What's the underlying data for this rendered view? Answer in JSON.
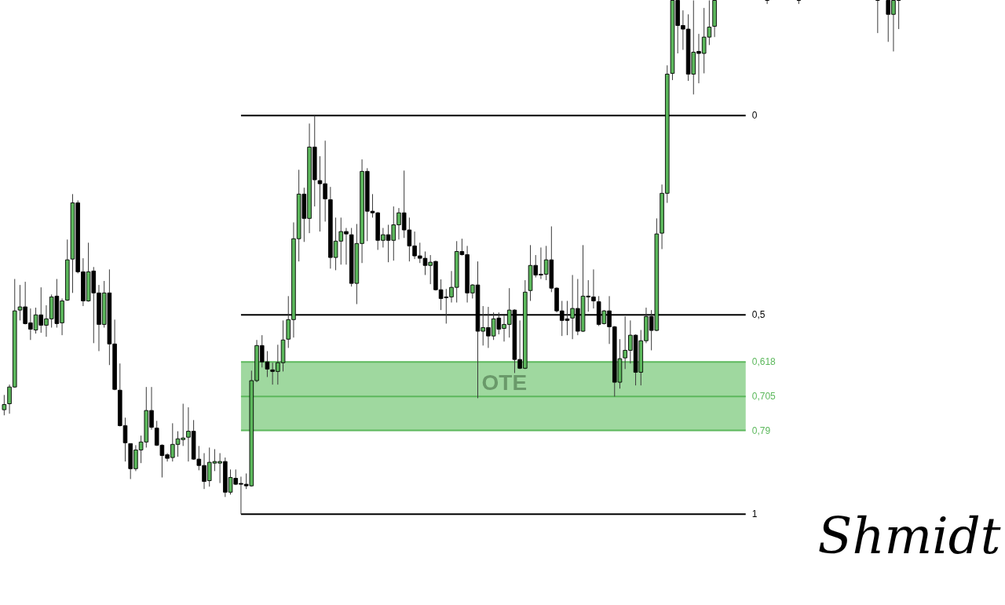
{
  "chart_data": {
    "type": "candlestick",
    "categories": [
      null,
      null,
      null,
      null,
      null,
      null,
      null,
      null,
      null,
      null,
      null,
      null,
      null,
      null,
      null,
      null,
      null,
      null,
      null,
      null,
      null,
      null,
      null,
      null,
      null,
      null,
      null,
      null,
      null,
      null,
      null,
      null,
      null,
      null,
      null,
      null,
      null,
      null,
      null,
      null,
      null,
      null,
      null,
      null,
      null,
      null,
      null,
      null,
      null,
      null,
      null,
      null,
      null,
      null,
      null,
      null,
      null,
      null,
      null,
      null,
      null,
      null,
      null,
      null,
      null,
      null,
      null,
      null,
      null,
      null,
      null,
      null,
      null,
      null,
      null,
      null,
      null,
      null,
      null,
      null,
      null,
      null,
      null,
      null,
      null,
      null,
      null,
      null,
      null,
      null,
      null,
      null,
      null,
      null,
      null,
      null,
      null,
      null,
      null,
      null,
      null,
      null,
      null,
      null,
      null,
      null,
      null,
      null,
      null,
      null,
      null,
      null,
      null,
      null,
      null,
      null,
      null,
      null,
      null,
      null,
      null,
      null,
      null,
      null,
      null,
      null,
      null,
      null,
      null,
      null,
      null,
      null,
      null,
      null,
      null,
      null,
      null,
      null,
      null,
      null,
      null,
      null,
      null,
      null,
      null,
      null,
      null,
      null,
      null,
      null,
      null,
      null,
      null,
      null,
      null,
      null,
      null,
      null,
      null,
      null,
      null,
      null,
      null,
      null,
      null,
      null,
      null,
      null,
      null,
      null,
      null
    ],
    "ohlc": [
      [
        0.738,
        0.752,
        0.701,
        0.725
      ],
      [
        0.723,
        0.748,
        0.675,
        0.681
      ],
      [
        0.681,
        0.683,
        0.41,
        0.49
      ],
      [
        0.488,
        0.514,
        0.425,
        0.48
      ],
      [
        0.48,
        0.524,
        0.417,
        0.522
      ],
      [
        0.52,
        0.563,
        0.484,
        0.536
      ],
      [
        0.538,
        0.547,
        0.482,
        0.5
      ],
      [
        0.5,
        0.545,
        0.431,
        0.526
      ],
      [
        0.526,
        0.555,
        0.476,
        0.51
      ],
      [
        0.51,
        0.532,
        0.449,
        0.455
      ],
      [
        0.453,
        0.532,
        0.41,
        0.522
      ],
      [
        0.52,
        0.551,
        0.459,
        0.465
      ],
      [
        0.463,
        0.465,
        0.311,
        0.362
      ],
      [
        0.36,
        0.445,
        0.197,
        0.219
      ],
      [
        0.219,
        0.396,
        0.213,
        0.392
      ],
      [
        0.392,
        0.478,
        0.358,
        0.465
      ],
      [
        0.465,
        0.467,
        0.319,
        0.392
      ],
      [
        0.39,
        0.571,
        0.38,
        0.445
      ],
      [
        0.445,
        0.591,
        0.425,
        0.524
      ],
      [
        0.524,
        0.532,
        0.415,
        0.445
      ],
      [
        0.445,
        0.626,
        0.386,
        0.573
      ],
      [
        0.573,
        0.689,
        0.512,
        0.687
      ],
      [
        0.689,
        0.78,
        0.622,
        0.778
      ],
      [
        0.778,
        0.868,
        0.758,
        0.821
      ],
      [
        0.823,
        0.912,
        0.823,
        0.886
      ],
      [
        0.886,
        0.892,
        0.827,
        0.839
      ],
      [
        0.839,
        0.872,
        0.803,
        0.819
      ],
      [
        0.819,
        0.833,
        0.681,
        0.74
      ],
      [
        0.74,
        0.788,
        0.681,
        0.782
      ],
      [
        0.784,
        0.829,
        0.766,
        0.827
      ],
      [
        0.827,
        0.908,
        0.825,
        0.853
      ],
      [
        0.851,
        0.868,
        0.847,
        0.86
      ],
      [
        0.858,
        0.868,
        0.772,
        0.825
      ],
      [
        0.825,
        0.856,
        0.792,
        0.811
      ],
      [
        0.813,
        0.829,
        0.723,
        0.809
      ],
      [
        0.807,
        0.868,
        0.732,
        0.792
      ],
      [
        0.792,
        0.864,
        0.764,
        0.862
      ],
      [
        0.862,
        0.89,
        0.829,
        0.878
      ],
      [
        0.878,
        0.937,
        0.847,
        0.918
      ],
      [
        0.916,
        0.931,
        0.833,
        0.87
      ],
      [
        0.872,
        0.892,
        0.837,
        0.868
      ],
      [
        0.872,
        0.922,
        0.847,
        0.868
      ],
      [
        0.868,
        0.957,
        0.858,
        0.945
      ],
      [
        0.945,
        0.951,
        0.888,
        0.908
      ],
      [
        0.91,
        0.927,
        0.888,
        0.925
      ],
      [
        0.923,
        1,
        0.906,
        0.925
      ],
      [
        0.925,
        0.937,
        0.898,
        0.929
      ],
      [
        0.929,
        0.931,
        0.64,
        0.665
      ],
      [
        0.665,
        0.669,
        0.563,
        0.577
      ],
      [
        0.577,
        0.632,
        0.551,
        0.618
      ],
      [
        0.618,
        0.656,
        0.591,
        0.636
      ],
      [
        0.638,
        0.675,
        0.62,
        0.642
      ],
      [
        0.642,
        0.675,
        0.575,
        0.62
      ],
      [
        0.62,
        0.642,
        0.514,
        0.563
      ],
      [
        0.561,
        0.583,
        0.453,
        0.512
      ],
      [
        0.512,
        0.557,
        0.268,
        0.309
      ],
      [
        0.309,
        0.366,
        0.136,
        0.197
      ],
      [
        0.197,
        0.317,
        0.181,
        0.258
      ],
      [
        0.258,
        0.295,
        0.02,
        0.079
      ],
      [
        0.079,
        0.228,
        0,
        0.161
      ],
      [
        0.163,
        0.291,
        0.102,
        0.171
      ],
      [
        0.171,
        0.266,
        0.063,
        0.209
      ],
      [
        0.211,
        0.384,
        0.179,
        0.356
      ],
      [
        0.356,
        0.388,
        0.256,
        0.315
      ],
      [
        0.315,
        0.374,
        0.256,
        0.291
      ],
      [
        0.291,
        0.374,
        0.282,
        0.297
      ],
      [
        0.299,
        0.429,
        0.282,
        0.421
      ],
      [
        0.421,
        0.473,
        0.272,
        0.321
      ],
      [
        0.321,
        0.37,
        0.11,
        0.14
      ],
      [
        0.14,
        0.315,
        0.132,
        0.24
      ],
      [
        0.24,
        0.256,
        0.197,
        0.244
      ],
      [
        0.244,
        0.337,
        0.242,
        0.313
      ],
      [
        0.313,
        0.331,
        0.282,
        0.299
      ],
      [
        0.299,
        0.368,
        0.274,
        0.313
      ],
      [
        0.313,
        0.364,
        0.228,
        0.274
      ],
      [
        0.274,
        0.311,
        0.232,
        0.244
      ],
      [
        0.244,
        0.307,
        0.138,
        0.287
      ],
      [
        0.287,
        0.366,
        0.256,
        0.327
      ],
      [
        0.327,
        0.36,
        0.291,
        0.352
      ],
      [
        0.352,
        0.37,
        0.319,
        0.358
      ],
      [
        0.358,
        0.4,
        0.341,
        0.376
      ],
      [
        0.376,
        0.423,
        0.35,
        0.368
      ],
      [
        0.366,
        0.439,
        0.364,
        0.437
      ],
      [
        0.437,
        0.488,
        0.411,
        0.459
      ],
      [
        0.455,
        0.522,
        0.435,
        0.457
      ],
      [
        0.455,
        0.469,
        0.39,
        0.431
      ],
      [
        0.431,
        0.469,
        0.315,
        0.341
      ],
      [
        0.341,
        0.351,
        0.309,
        0.349
      ],
      [
        0.349,
        0.469,
        0.327,
        0.445
      ],
      [
        0.445,
        0.459,
        0.423,
        0.425
      ],
      [
        0.425,
        0.709,
        0.366,
        0.541
      ],
      [
        0.541,
        0.577,
        0.478,
        0.532
      ],
      [
        0.532,
        0.583,
        0.48,
        0.553
      ],
      [
        0.553,
        0.563,
        0.494,
        0.51
      ],
      [
        0.508,
        0.549,
        0.494,
        0.536
      ],
      [
        0.534,
        0.567,
        0.502,
        0.524
      ],
      [
        0.524,
        0.557,
        0.433,
        0.488
      ],
      [
        0.488,
        0.646,
        0.486,
        0.612
      ],
      [
        0.612,
        0.636,
        0.514,
        0.634
      ],
      [
        0.634,
        0.636,
        0.413,
        0.443
      ],
      [
        0.439,
        0.465,
        0.325,
        0.376
      ],
      [
        0.376,
        0.406,
        0.35,
        0.4
      ],
      [
        0.398,
        0.41,
        0.331,
        0.4
      ],
      [
        0.398,
        0.413,
        0.327,
        0.362
      ],
      [
        0.362,
        0.443,
        0.278,
        0.433
      ],
      [
        0.433,
        0.494,
        0.431,
        0.49
      ],
      [
        0.49,
        0.553,
        0.465,
        0.514
      ],
      [
        0.51,
        0.551,
        0.465,
        0.514
      ],
      [
        0.508,
        0.561,
        0.4,
        0.484
      ],
      [
        0.484,
        0.551,
        0.41,
        0.541
      ],
      [
        0.541,
        0.543,
        0.325,
        0.453
      ],
      [
        0.453,
        0.492,
        0.413,
        0.455
      ],
      [
        0.455,
        0.484,
        0.386,
        0.465
      ],
      [
        0.467,
        0.528,
        0.453,
        0.524
      ],
      [
        0.522,
        0.524,
        0.488,
        0.49
      ],
      [
        0.49,
        0.573,
        0.453,
        0.53
      ],
      [
        0.53,
        0.705,
        0.528,
        0.669
      ],
      [
        0.669,
        0.685,
        0.561,
        0.61
      ],
      [
        0.608,
        0.636,
        0.504,
        0.589
      ],
      [
        0.589,
        0.622,
        0.514,
        0.551
      ],
      [
        0.551,
        0.677,
        0.549,
        0.644
      ],
      [
        0.644,
        0.677,
        0.538,
        0.565
      ],
      [
        0.565,
        0.571,
        0.482,
        0.504
      ],
      [
        0.504,
        0.589,
        0.488,
        0.539
      ],
      [
        0.539,
        0.541,
        0.258,
        0.297
      ],
      [
        0.295,
        0.335,
        0.173,
        0.195
      ],
      [
        0.195,
        0.219,
        -0.126,
        -0.104
      ],
      [
        -0.106,
        -0.089,
        -0.289,
        -0.289
      ],
      [
        -0.289,
        -0.156,
        -0.289,
        -0.226
      ],
      [
        -0.226,
        -0.165,
        -0.264,
        -0.217
      ],
      [
        -0.217,
        -0.087,
        -0.254,
        -0.104
      ],
      [
        -0.104,
        -0.053,
        -0.289,
        -0.159
      ],
      [
        -0.161,
        -0.081,
        -0.205,
        -0.156
      ],
      [
        -0.156,
        -0.106,
        -0.27,
        -0.197
      ],
      [
        -0.197,
        -0.177,
        -0.289,
        -0.222
      ],
      [
        -0.224,
        -0.197,
        -0.289,
        -0.289
      ],
      null,
      null,
      null,
      null,
      null,
      null,
      null,
      null,
      null,
      [
        -0.289,
        -0.28,
        -0.289,
        -0.289
      ],
      null,
      null,
      null,
      null,
      null,
      [
        -0.289,
        -0.28,
        -0.289,
        -0.289
      ],
      null,
      null,
      null,
      null,
      null,
      null,
      null,
      null,
      null,
      null,
      null,
      null,
      null,
      null,
      [
        -0.289,
        -0.207,
        -0.289,
        -0.289
      ],
      null,
      [
        -0.289,
        -0.185,
        -0.289,
        -0.254
      ],
      [
        -0.254,
        -0.161,
        -0.289,
        -0.289
      ],
      [
        -0.289,
        -0.217,
        -0.289,
        -0.289
      ]
    ],
    "colors": [
      "#5cb85c",
      "#5cb85c",
      "#5cb85c",
      "#5cb85c",
      "#000000",
      "#000000",
      "#5cb85c",
      "#000000",
      "#5cb85c",
      "#5cb85c",
      "#000000",
      "#5cb85c",
      "#5cb85c",
      "#5cb85c",
      "#000000",
      "#000000",
      "#5cb85c",
      "#000000",
      "#000000",
      "#5cb85c",
      "#000000",
      "#000000",
      "#000000",
      "#000000",
      "#000000",
      "#5cb85c",
      "#5cb85c",
      "#5cb85c",
      "#000000",
      "#000000",
      "#000000",
      "#000000",
      "#5cb85c",
      "#5cb85c",
      "#5cb85c",
      "#5cb85c",
      "#000000",
      "#000000",
      "#000000",
      "#5cb85c",
      "#5cb85c",
      "#5cb85c",
      "#000000",
      "#5cb85c",
      "#000000",
      "#000000",
      "#000000",
      "#5cb85c",
      "#5cb85c",
      "#000000",
      "#000000",
      "#000000",
      "#5cb85c",
      "#5cb85c",
      "#5cb85c",
      "#5cb85c",
      "#5cb85c",
      "#000000",
      "#5cb85c",
      "#000000",
      "#000000",
      "#000000",
      "#000000",
      "#5cb85c",
      "#5cb85c",
      "#000000",
      "#000000",
      "#5cb85c",
      "#5cb85c",
      "#000000",
      "#000000",
      "#000000",
      "#5cb85c",
      "#000000",
      "#5cb85c",
      "#5cb85c",
      "#000000",
      "#000000",
      "#000000",
      "#000000",
      "#000000",
      "#5cb85c",
      "#000000",
      "#000000",
      "#000000",
      "#5cb85c",
      "#5cb85c",
      "#000000",
      "#000000",
      "#5cb85c",
      "#000000",
      "#5cb85c",
      "#000000",
      "#5cb85c",
      "#000000",
      "#5cb85c",
      "#5cb85c",
      "#000000",
      "#000000",
      "#5cb85c",
      "#5cb85c",
      "#000000",
      "#000000",
      "#5cb85c",
      "#000000",
      "#000000",
      "#000000",
      "#000000",
      "#5cb85c",
      "#000000",
      "#5cb85c",
      "#000000",
      "#000000",
      "#000000",
      "#5cb85c",
      "#000000",
      "#000000",
      "#5cb85c",
      "#5cb85c",
      "#5cb85c",
      "#000000",
      "#5cb85c",
      "#5cb85c",
      "#000000",
      "#5cb85c",
      "#5cb85c",
      "#5cb85c",
      "#5cb85c",
      "#000000",
      "#000000",
      "#000000",
      "#5cb85c",
      "#000000",
      "#5cb85c",
      "#5cb85c",
      "#5cb85c",
      null,
      null,
      null,
      null,
      null,
      null,
      null,
      null,
      null,
      "#000000",
      null,
      null,
      null,
      null,
      null,
      "#000000",
      null,
      null,
      null,
      null,
      null,
      null,
      null,
      null,
      null,
      null,
      null,
      null,
      null,
      null,
      "#000000",
      null,
      "#000000",
      "#5cb85c",
      "#000000"
    ],
    "ylim": [
      1.228,
      -0.29
    ],
    "tick_labels": false,
    "ref_lines": [
      {
        "axis": "y",
        "value": 0,
        "label": "0",
        "color": "#000000"
      },
      {
        "axis": "y",
        "value": 0.5,
        "label": "0,5",
        "color": "#000000"
      },
      {
        "axis": "y",
        "value": 0.618,
        "label": "0,618",
        "color": "#5cb85c"
      },
      {
        "axis": "y",
        "value": 0.705,
        "label": "0,705",
        "color": "#5cb85c"
      },
      {
        "axis": "y",
        "value": 0.79,
        "label": "0,79",
        "color": "#5cb85c"
      },
      {
        "axis": "y",
        "value": 1,
        "label": "1",
        "color": "#000000"
      }
    ],
    "bands": [
      {
        "axis": "y",
        "from": 0.618,
        "to": 0.79,
        "label": "OTE",
        "color": "#9fd89f"
      }
    ],
    "annotations": [
      "Shmidt"
    ]
  }
}
